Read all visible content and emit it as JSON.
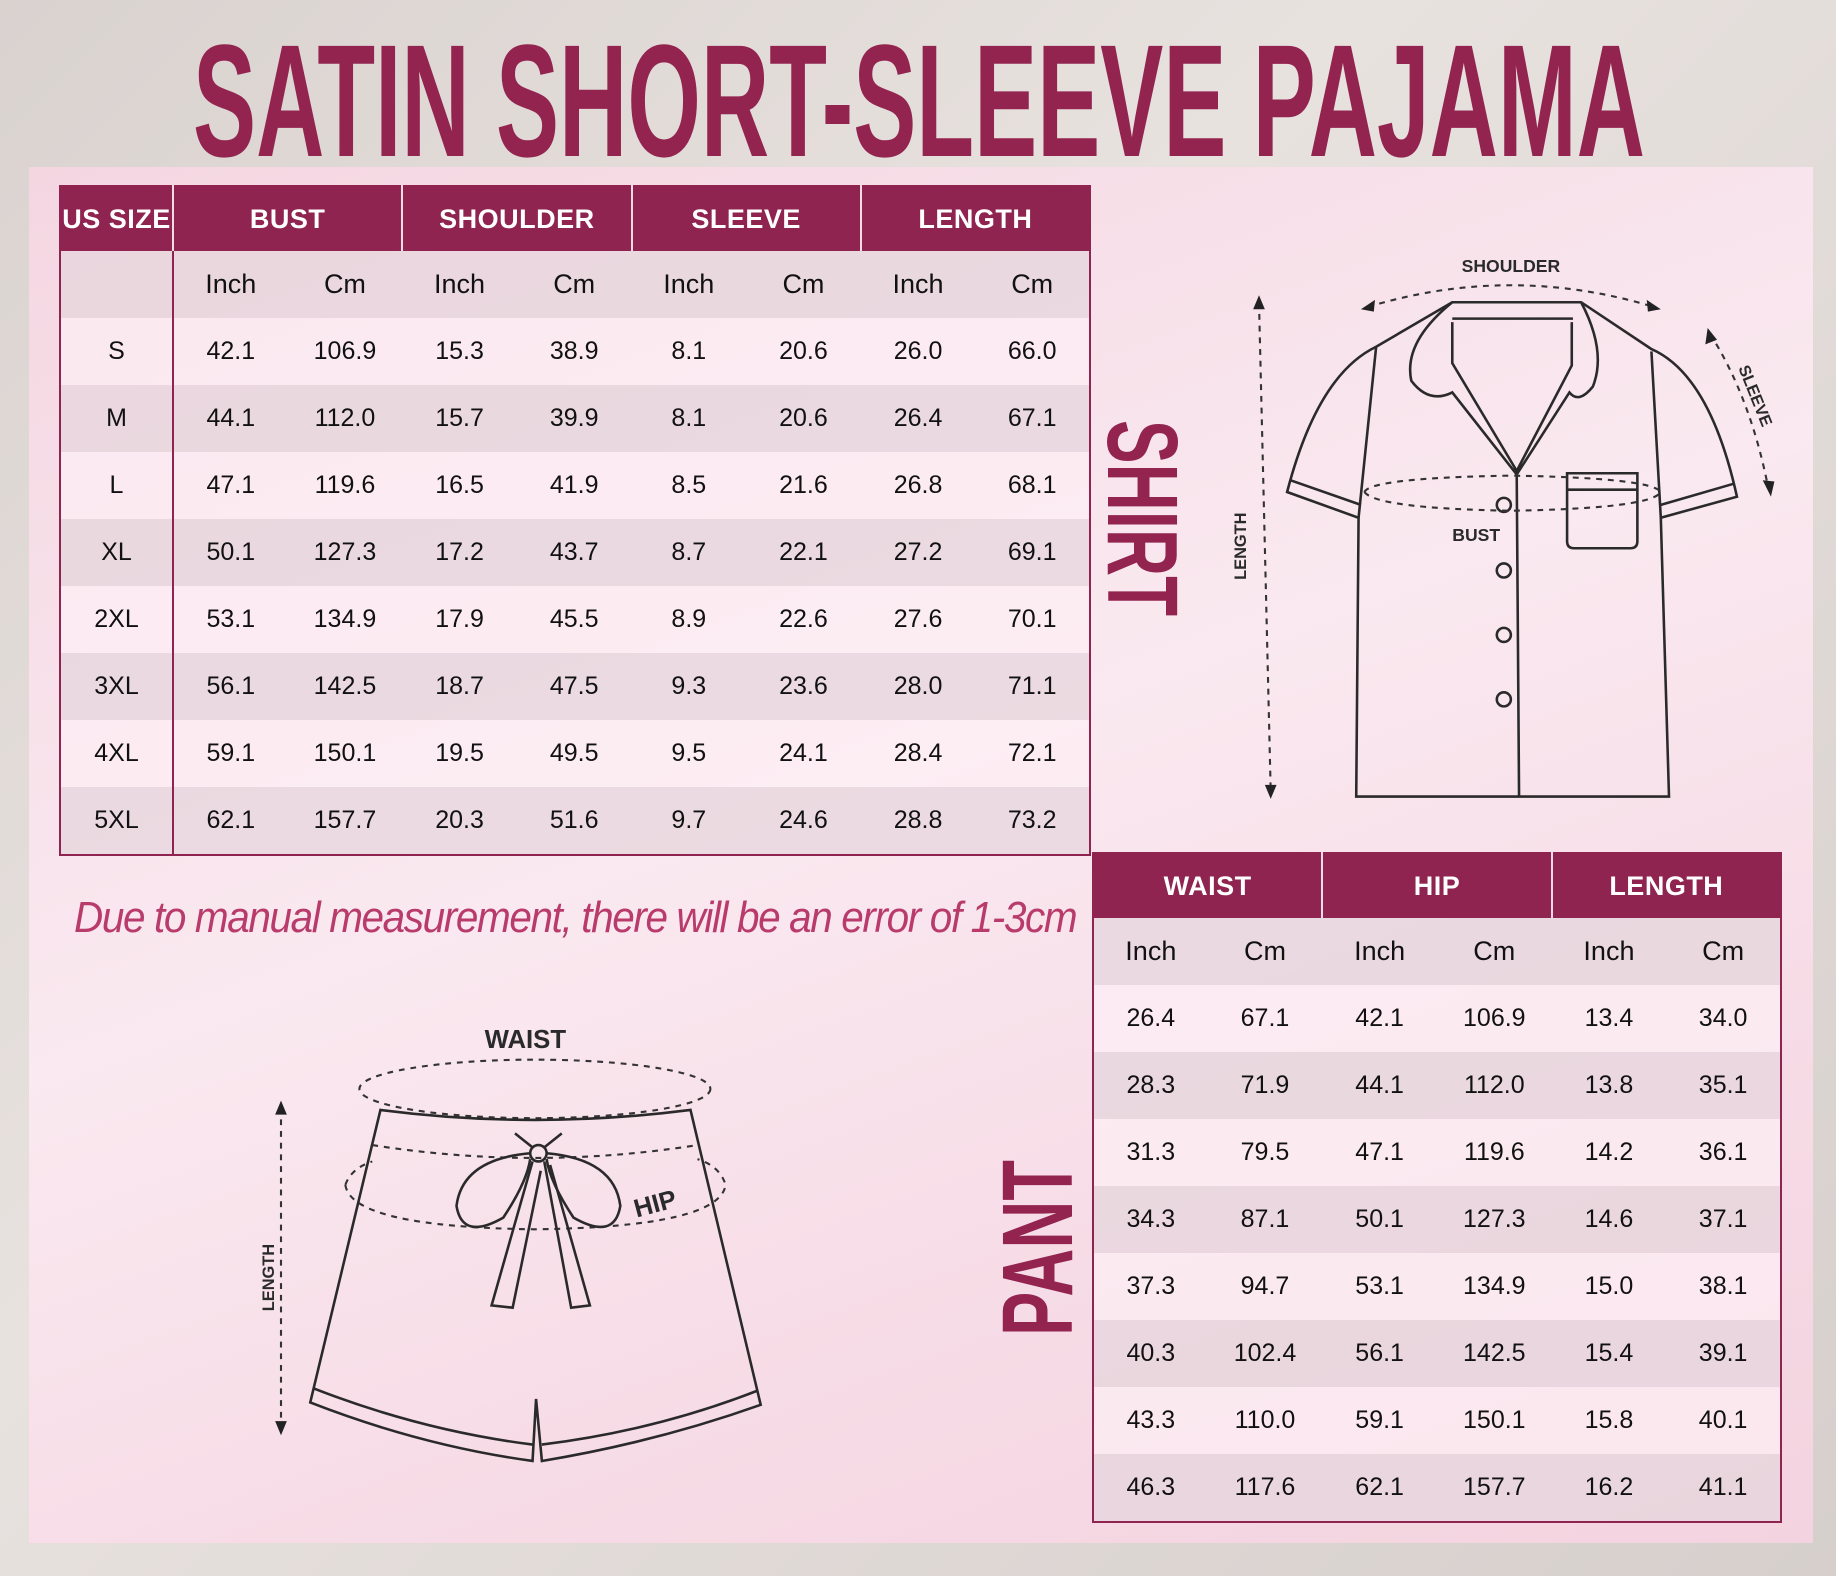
{
  "title": "SATIN SHORT-SLEEVE PAJAMA",
  "colors": {
    "accent": "#8f2450",
    "note": "#b83b6c"
  },
  "shirt": {
    "label": "SHIRT",
    "headers": [
      "US SIZE",
      "BUST",
      "SHOULDER",
      "SLEEVE",
      "LENGTH"
    ],
    "units": [
      "Inch",
      "Cm",
      "Inch",
      "Cm",
      "Inch",
      "Cm",
      "Inch",
      "Cm"
    ],
    "rows": [
      {
        "size": "S",
        "values": [
          "42.1",
          "106.9",
          "15.3",
          "38.9",
          "8.1",
          "20.6",
          "26.0",
          "66.0"
        ]
      },
      {
        "size": "M",
        "values": [
          "44.1",
          "112.0",
          "15.7",
          "39.9",
          "8.1",
          "20.6",
          "26.4",
          "67.1"
        ]
      },
      {
        "size": "L",
        "values": [
          "47.1",
          "119.6",
          "16.5",
          "41.9",
          "8.5",
          "21.6",
          "26.8",
          "68.1"
        ]
      },
      {
        "size": "XL",
        "values": [
          "50.1",
          "127.3",
          "17.2",
          "43.7",
          "8.7",
          "22.1",
          "27.2",
          "69.1"
        ]
      },
      {
        "size": "2XL",
        "values": [
          "53.1",
          "134.9",
          "17.9",
          "45.5",
          "8.9",
          "22.6",
          "27.6",
          "70.1"
        ]
      },
      {
        "size": "3XL",
        "values": [
          "56.1",
          "142.5",
          "18.7",
          "47.5",
          "9.3",
          "23.6",
          "28.0",
          "71.1"
        ]
      },
      {
        "size": "4XL",
        "values": [
          "59.1",
          "150.1",
          "19.5",
          "49.5",
          "9.5",
          "24.1",
          "28.4",
          "72.1"
        ]
      },
      {
        "size": "5XL",
        "values": [
          "62.1",
          "157.7",
          "20.3",
          "51.6",
          "9.7",
          "24.6",
          "28.8",
          "73.2"
        ]
      }
    ],
    "diagram": {
      "shoulder": "SHOULDER",
      "sleeve": "SLEEVE",
      "bust": "BUST",
      "length": "LENGTH"
    }
  },
  "note": "Due to manual measurement, there will be an error of 1-3cm",
  "pant": {
    "label": "PANT",
    "headers": [
      "WAIST",
      "HIP",
      "LENGTH"
    ],
    "units": [
      "Inch",
      "Cm",
      "Inch",
      "Cm",
      "Inch",
      "Cm"
    ],
    "rows": [
      [
        "26.4",
        "67.1",
        "42.1",
        "106.9",
        "13.4",
        "34.0"
      ],
      [
        "28.3",
        "71.9",
        "44.1",
        "112.0",
        "13.8",
        "35.1"
      ],
      [
        "31.3",
        "79.5",
        "47.1",
        "119.6",
        "14.2",
        "36.1"
      ],
      [
        "34.3",
        "87.1",
        "50.1",
        "127.3",
        "14.6",
        "37.1"
      ],
      [
        "37.3",
        "94.7",
        "53.1",
        "134.9",
        "15.0",
        "38.1"
      ],
      [
        "40.3",
        "102.4",
        "56.1",
        "142.5",
        "15.4",
        "39.1"
      ],
      [
        "43.3",
        "110.0",
        "59.1",
        "150.1",
        "15.8",
        "40.1"
      ],
      [
        "46.3",
        "117.6",
        "62.1",
        "157.7",
        "16.2",
        "41.1"
      ]
    ],
    "diagram": {
      "waist": "WAIST",
      "hip": "HIP",
      "length": "LENGTH"
    }
  }
}
